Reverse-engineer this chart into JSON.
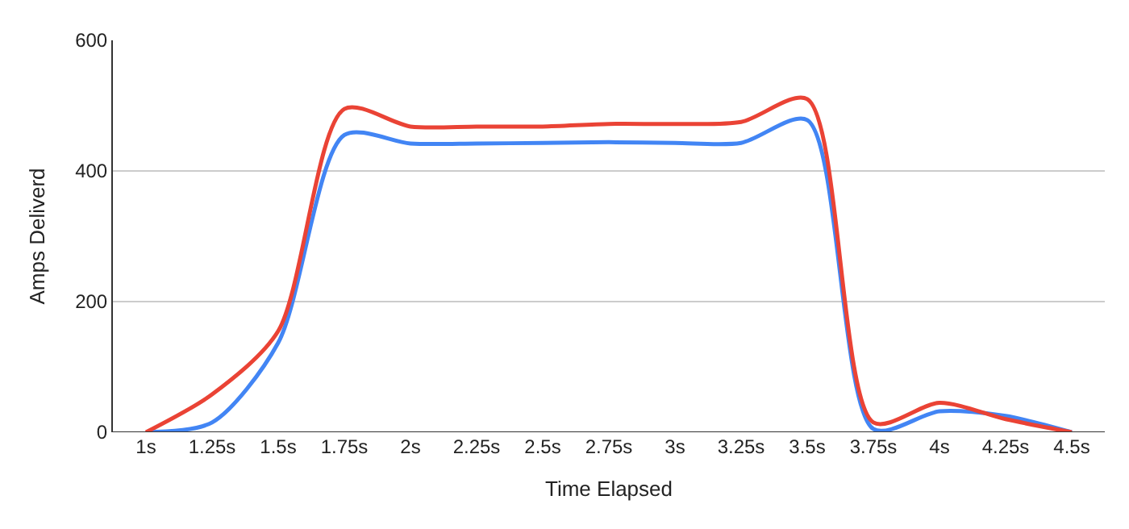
{
  "chart_data": {
    "type": "line",
    "xlabel": "Time Elapsed",
    "ylabel": "Amps Deliverd",
    "categories": [
      "1s",
      "1.25s",
      "1.5s",
      "1.75s",
      "2s",
      "2.25s",
      "2.5s",
      "2.75s",
      "3s",
      "3.25s",
      "3.5s",
      "3.75s",
      "4s",
      "4.25s",
      "4.5s"
    ],
    "series": [
      {
        "color": "#4285f4",
        "values": [
          0,
          15,
          137,
          455,
          442,
          442,
          443,
          444,
          443,
          443,
          478,
          5,
          32,
          25,
          0
        ]
      },
      {
        "color": "#ea4335",
        "values": [
          0,
          58,
          155,
          495,
          468,
          468,
          468,
          472,
          472,
          475,
          510,
          15,
          45,
          20,
          0
        ]
      }
    ],
    "ylim": [
      0,
      600
    ],
    "yticks": [
      0,
      200,
      400,
      600
    ],
    "grid": "y",
    "marker": "none",
    "line_style": "solid"
  }
}
